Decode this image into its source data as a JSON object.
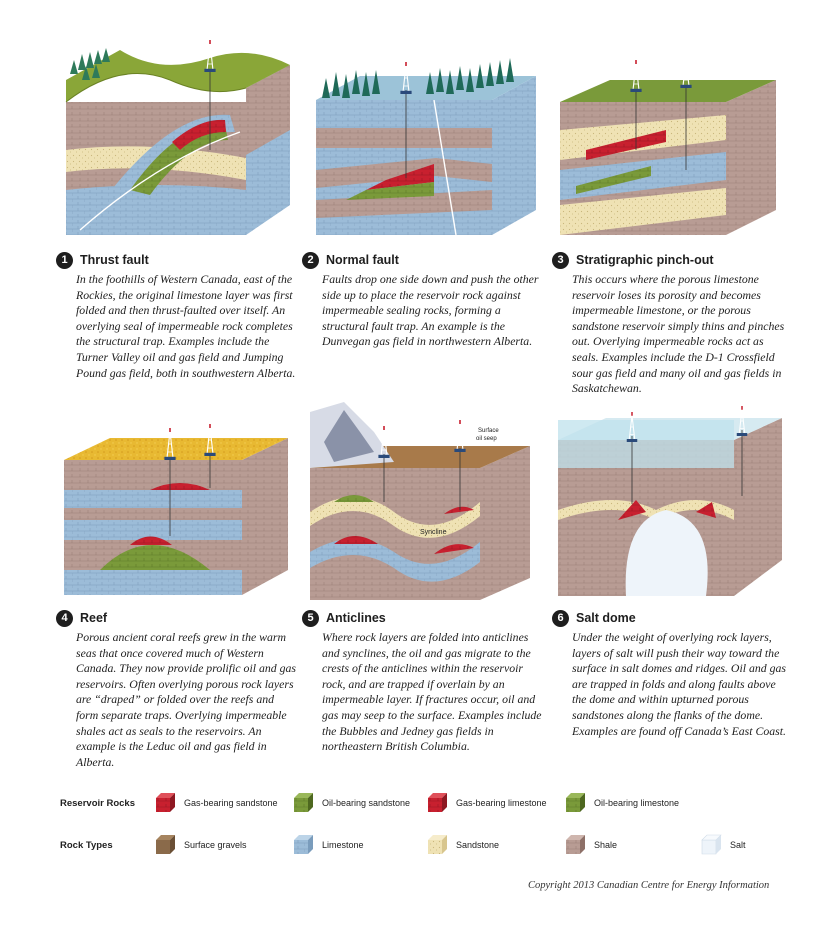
{
  "panels": [
    {
      "num": "1",
      "title": "Thrust fault",
      "text": "In the foothills of Western Canada, east of the Rockies, the original limestone layer was first folded and then thrust-faulted over itself. An overlying seal of impermeable rock completes the structural trap. Examples include the Turner Valley oil and gas field and Jumping Pound gas field, both in southwestern Alberta."
    },
    {
      "num": "2",
      "title": "Normal fault",
      "text": "Faults drop one side down and push the other side up to place the reservoir rock against impermeable sealing rocks, forming a structural fault trap. An example is the Dunvegan gas field in northwestern Alberta."
    },
    {
      "num": "3",
      "title": "Stratigraphic pinch-out",
      "text": "This occurs where the porous limestone reservoir loses its porosity and becomes impermeable limestone, or the porous sandstone reservoir simply thins and pinches out. Overlying impermeable rocks act as seals. Examples include the D-1 Crossfield sour gas field and many oil and gas fields in Saskatchewan."
    },
    {
      "num": "4",
      "title": "Reef",
      "text": "Porous ancient coral reefs grew in the warm seas that once covered much of Western Canada. They now provide prolific oil and gas reservoirs. Often overlying porous rock layers are “draped” or folded over the reefs and form separate traps. Overlying impermeable shales act as seals to the reservoirs. An example is the Leduc oil and gas field in Alberta."
    },
    {
      "num": "5",
      "title": "Anticlines",
      "text": "Where rock layers are folded into anticlines and synclines, the oil and gas migrate to the crests of the anticlines within the reservoir rock, and are trapped if overlain by an impermeable layer. If fractures occur, oil and gas may seep to the surface. Examples include the Bubbles and Jedney gas fields in northeastern British Columbia."
    },
    {
      "num": "6",
      "title": "Salt dome",
      "text": "Under the weight of overlying rock layers, layers of salt will push their way toward the surface in salt domes and ridges. Oil and gas are trapped in folds and along faults above the dome and within upturned porous sandstones along the flanks of the dome. Examples are found off Canada’s East Coast."
    }
  ],
  "diagram_labels": {
    "syncline": "Syncline",
    "seep_1": "Surface",
    "seep_2": "oil seep"
  },
  "legend": {
    "reservoir_label": "Reservoir Rocks",
    "rock_types_label": "Rock Types",
    "reservoir_items": [
      {
        "label": "Gas-bearing sandstone",
        "color": "#c8202f"
      },
      {
        "label": "Oil-bearing sandstone",
        "color": "#7a9a3a"
      },
      {
        "label": "Gas-bearing limestone",
        "color": "#c8202f"
      },
      {
        "label": "Oil-bearing limestone",
        "color": "#7a9a3a"
      }
    ],
    "rock_items": [
      {
        "label": "Surface gravels",
        "color": "#8a6a4a"
      },
      {
        "label": "Limestone",
        "color": "#9bbbd6"
      },
      {
        "label": "Sandstone",
        "color": "#efe2b4"
      },
      {
        "label": "Shale",
        "color": "#b89c94"
      },
      {
        "label": "Salt",
        "color": "#eef4fa"
      }
    ]
  },
  "copyright": "Copyright 2013 Canadian Centre for Energy Information"
}
